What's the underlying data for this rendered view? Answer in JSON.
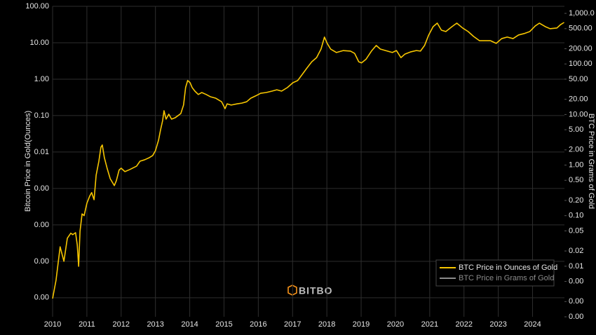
{
  "chart_data": {
    "type": "line",
    "y_label": "Bitcoin Price in Gold(Ounces)",
    "y2_label": "BTC Price in Grams of Gold",
    "watermark": "BITBO",
    "log_y": true,
    "log_y2": true,
    "grid": true,
    "legend_position": "bottom-right",
    "background": "#000000",
    "xlim": [
      2010,
      2024.93
    ],
    "xticks": [
      2010,
      2011,
      2012,
      2013,
      2014,
      2015,
      2016,
      2017,
      2018,
      2019,
      2020,
      2021,
      2022,
      2023,
      2024
    ],
    "ylim": [
      3e-07,
      100
    ],
    "yticks": [
      {
        "value": 100,
        "label": "100.00"
      },
      {
        "value": 10,
        "label": "10.00"
      },
      {
        "value": 1,
        "label": "1.00"
      },
      {
        "value": 0.1,
        "label": "0.10"
      },
      {
        "value": 0.01,
        "label": "0.01"
      },
      {
        "value": 0.001,
        "label": "0.00"
      },
      {
        "value": 0.0001,
        "label": "0.00"
      },
      {
        "value": 1e-05,
        "label": "0.00"
      },
      {
        "value": 1e-06,
        "label": "0.00"
      }
    ],
    "y2lim": [
      0.001,
      1380
    ],
    "y2ticks": [
      {
        "value": 1000,
        "label": "1,000.0"
      },
      {
        "value": 500,
        "label": "500.00"
      },
      {
        "value": 200,
        "label": "200.00"
      },
      {
        "value": 100,
        "label": "100.00"
      },
      {
        "value": 50,
        "label": "50.00"
      },
      {
        "value": 20,
        "label": "20.00"
      },
      {
        "value": 10,
        "label": "10.00"
      },
      {
        "value": 5,
        "label": "5.00"
      },
      {
        "value": 2,
        "label": "2.00"
      },
      {
        "value": 1,
        "label": "1.00"
      },
      {
        "value": 0.5,
        "label": "0.50"
      },
      {
        "value": 0.2,
        "label": "0.20"
      },
      {
        "value": 0.1,
        "label": "0.10"
      },
      {
        "value": 0.05,
        "label": "0.05"
      },
      {
        "value": 0.02,
        "label": "0.02"
      },
      {
        "value": 0.01,
        "label": "0.01"
      },
      {
        "value": 0.005,
        "label": "0.00"
      },
      {
        "value": 0.002,
        "label": "0.00"
      },
      {
        "value": 0.001,
        "label": "0.00"
      }
    ],
    "x": [
      2010.0,
      2010.1,
      2010.22,
      2010.33,
      2010.43,
      2010.53,
      2010.59,
      2010.67,
      2010.72,
      2010.76,
      2010.8,
      2010.86,
      2010.92,
      2011.0,
      2011.08,
      2011.14,
      2011.21,
      2011.27,
      2011.35,
      2011.41,
      2011.45,
      2011.51,
      2011.59,
      2011.68,
      2011.8,
      2011.86,
      2011.94,
      2012.0,
      2012.11,
      2012.25,
      2012.45,
      2012.55,
      2012.68,
      2012.82,
      2012.92,
      2013.0,
      2013.09,
      2013.15,
      2013.21,
      2013.25,
      2013.31,
      2013.39,
      2013.47,
      2013.58,
      2013.66,
      2013.74,
      2013.82,
      2013.88,
      2013.94,
      2014.01,
      2014.07,
      2014.15,
      2014.25,
      2014.35,
      2014.48,
      2014.6,
      2014.76,
      2014.93,
      2015.03,
      2015.09,
      2015.21,
      2015.38,
      2015.52,
      2015.66,
      2015.78,
      2015.93,
      2016.07,
      2016.23,
      2016.4,
      2016.54,
      2016.68,
      2016.85,
      2017.01,
      2017.15,
      2017.3,
      2017.42,
      2017.56,
      2017.7,
      2017.83,
      2017.93,
      2018.01,
      2018.11,
      2018.28,
      2018.48,
      2018.69,
      2018.81,
      2018.93,
      2019.01,
      2019.14,
      2019.3,
      2019.44,
      2019.56,
      2019.71,
      2019.91,
      2020.03,
      2020.16,
      2020.28,
      2020.44,
      2020.61,
      2020.73,
      2020.85,
      2020.97,
      2021.1,
      2021.22,
      2021.34,
      2021.47,
      2021.65,
      2021.79,
      2021.96,
      2022.12,
      2022.28,
      2022.45,
      2022.61,
      2022.77,
      2022.94,
      2023.1,
      2023.26,
      2023.43,
      2023.59,
      2023.75,
      2023.92,
      2024.08,
      2024.2,
      2024.37,
      2024.51,
      2024.71,
      2024.82,
      2024.92
    ],
    "series": [
      {
        "name": "BTC Price in Ounces of Gold",
        "color": "#f7c600",
        "values": [
          9.5e-07,
          3e-06,
          2.5e-05,
          1e-05,
          4.3e-05,
          5.9e-05,
          5.4e-05,
          6.1e-05,
          2.8e-05,
          7.3e-06,
          6.7e-05,
          0.0002,
          0.00018,
          0.00039,
          0.00061,
          0.00077,
          0.00049,
          0.0023,
          0.0056,
          0.0136,
          0.0156,
          0.007,
          0.0036,
          0.00186,
          0.0012,
          0.00163,
          0.0032,
          0.0036,
          0.0029,
          0.0033,
          0.0041,
          0.0056,
          0.0061,
          0.007,
          0.008,
          0.0109,
          0.021,
          0.041,
          0.073,
          0.136,
          0.08,
          0.109,
          0.08,
          0.088,
          0.1,
          0.114,
          0.195,
          0.59,
          0.92,
          0.8,
          0.59,
          0.47,
          0.38,
          0.43,
          0.38,
          0.33,
          0.3,
          0.24,
          0.155,
          0.21,
          0.195,
          0.21,
          0.22,
          0.24,
          0.3,
          0.35,
          0.41,
          0.43,
          0.47,
          0.51,
          0.47,
          0.59,
          0.8,
          0.92,
          1.42,
          2.03,
          3.0,
          3.9,
          6.7,
          14.3,
          9.6,
          6.7,
          5.4,
          6.1,
          5.9,
          5.1,
          3.0,
          2.8,
          3.5,
          5.9,
          8.4,
          6.7,
          6.1,
          5.4,
          6.1,
          3.9,
          4.9,
          5.6,
          6.1,
          5.9,
          8.4,
          16.3,
          27.7,
          34.5,
          22.2,
          20.3,
          27.7,
          34.5,
          25.4,
          20.3,
          14.9,
          11.4,
          11.4,
          11.4,
          9.6,
          13.0,
          14.3,
          13.0,
          16.3,
          17.8,
          20.3,
          29.0,
          34.5,
          27.7,
          24.3,
          25.4,
          31.6,
          36.1
        ]
      },
      {
        "name": "BTC Price in Grams of Gold",
        "color": "#8c8c8c",
        "axis": "y2",
        "visible": false
      }
    ]
  }
}
